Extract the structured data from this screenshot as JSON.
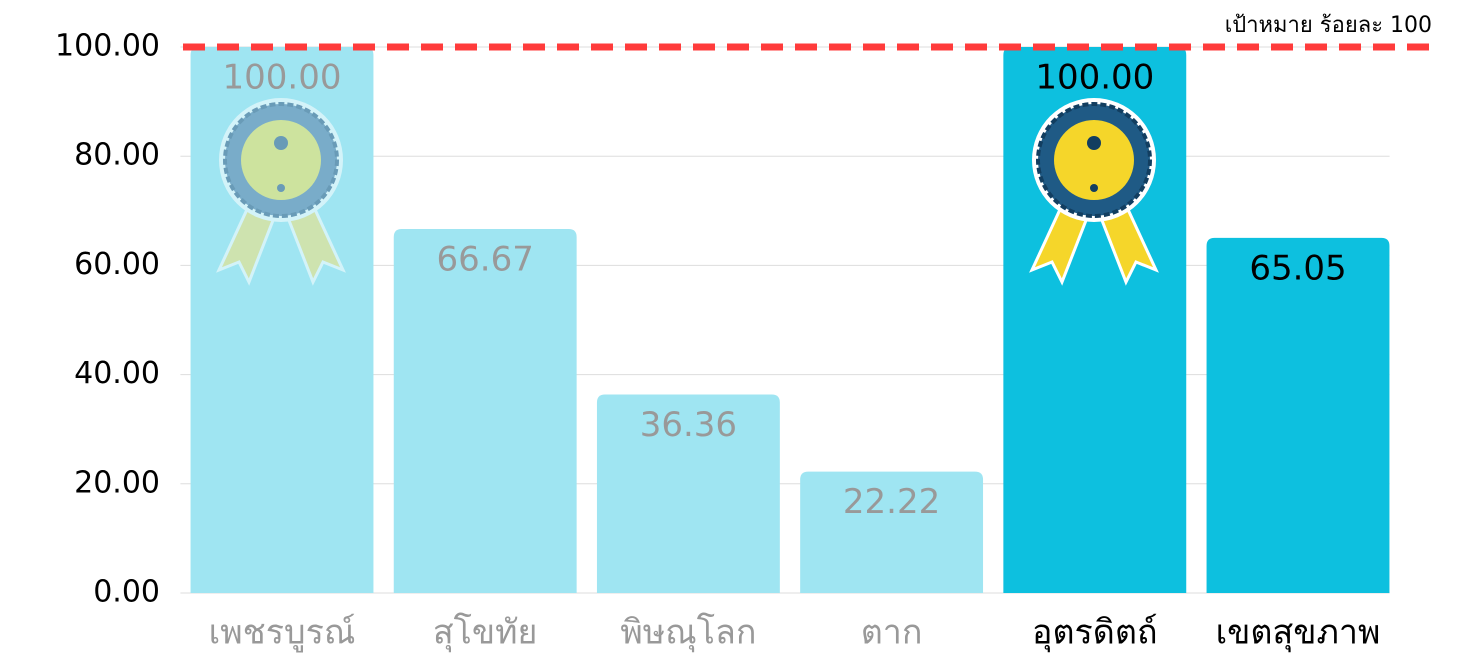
{
  "chart_data": {
    "type": "bar",
    "categories": [
      "เพชรบูรณ์",
      "สุโขทัย",
      "พิษณุโลก",
      "ตาก",
      "อุตรดิตถ์",
      "เขตสุขภาพ"
    ],
    "values": [
      100,
      66.67,
      36.36,
      22.22,
      100,
      65.05
    ],
    "value_labels": [
      "100.00",
      "66.67",
      "36.36",
      "22.22",
      "100.00",
      "65.05"
    ],
    "colors": [
      "#9fe5f2",
      "#9fe5f2",
      "#9fe5f2",
      "#9fe5f2",
      "#0dc0df",
      "#0dc0df"
    ],
    "text_colors": [
      "#999999",
      "#999999",
      "#999999",
      "#999999",
      "#000000",
      "#000000"
    ],
    "ylim": [
      0,
      100
    ],
    "yticks": [
      {
        "value": 0,
        "label": "0.00"
      },
      {
        "value": 20,
        "label": "20.00"
      },
      {
        "value": 40,
        "label": "40.00"
      },
      {
        "value": 60,
        "label": "60.00"
      },
      {
        "value": 80,
        "label": "80.00"
      },
      {
        "value": 100,
        "label": "100.00"
      }
    ],
    "grid": true,
    "target": {
      "value": 100,
      "label": "เป้าหมาย ร้อยละ 100",
      "color": "#ff3b3b"
    }
  }
}
